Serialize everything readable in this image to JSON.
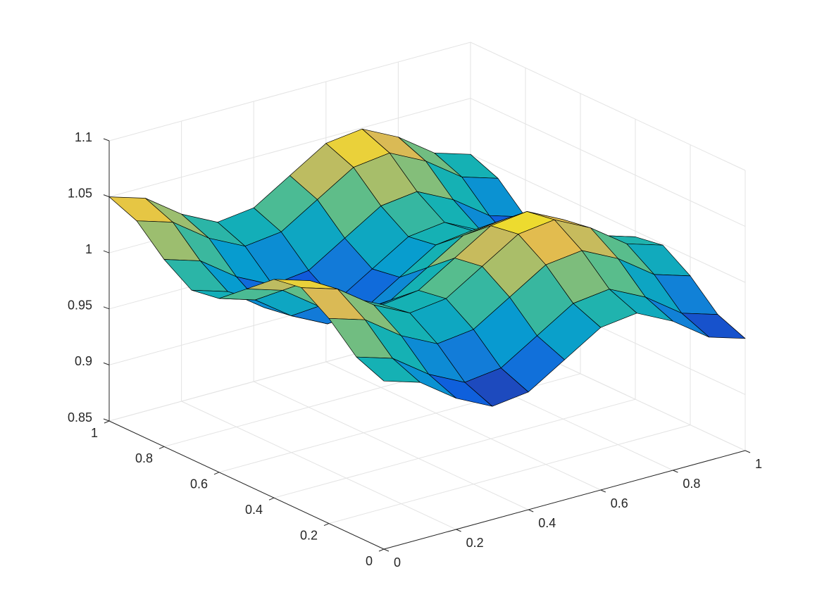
{
  "chart_data": {
    "type": "surface",
    "x": [
      0,
      0.1,
      0.2,
      0.3,
      0.4,
      0.5,
      0.6,
      0.7,
      0.8,
      0.9,
      1
    ],
    "y": [
      0,
      0.1,
      0.2,
      0.3,
      0.4,
      0.5,
      0.6,
      0.7,
      0.8,
      0.9,
      1
    ],
    "z": [
      [
        1.0,
        0.99,
        0.967,
        0.951,
        0.955,
        0.975,
        0.995,
        0.999,
        0.983,
        0.96,
        0.95
      ],
      [
        1.01,
        1.0,
        0.977,
        0.961,
        0.965,
        0.985,
        1.005,
        1.009,
        0.993,
        0.97,
        0.96
      ],
      [
        1.033,
        1.023,
        1.0,
        0.984,
        0.988,
        1.008,
        1.028,
        1.032,
        1.016,
        0.993,
        0.983
      ],
      [
        1.049,
        1.039,
        1.016,
        1.0,
        1.004,
        1.024,
        1.044,
        1.048,
        1.032,
        1.009,
        0.999
      ],
      [
        1.045,
        1.035,
        1.012,
        0.996,
        1.0,
        1.02,
        1.04,
        1.044,
        1.028,
        1.005,
        0.995
      ],
      [
        1.025,
        1.015,
        0.992,
        0.976,
        0.98,
        1.0,
        1.02,
        1.024,
        1.008,
        0.985,
        0.975
      ],
      [
        1.005,
        0.995,
        0.972,
        0.956,
        0.96,
        0.98,
        1.0,
        1.004,
        0.988,
        0.965,
        0.955
      ],
      [
        1.001,
        0.991,
        0.968,
        0.952,
        0.956,
        0.976,
        0.996,
        1.0,
        0.984,
        0.961,
        0.951
      ],
      [
        1.017,
        1.007,
        0.984,
        0.968,
        0.972,
        0.992,
        1.012,
        1.016,
        1.0,
        0.977,
        0.967
      ],
      [
        1.04,
        1.03,
        1.007,
        0.991,
        0.995,
        1.015,
        1.035,
        1.039,
        1.023,
        1.0,
        0.99
      ],
      [
        1.05,
        1.04,
        1.017,
        1.001,
        1.005,
        1.025,
        1.045,
        1.049,
        1.033,
        1.01,
        1.0
      ]
    ],
    "xlim": [
      0,
      1
    ],
    "xticks": [
      0,
      0.2,
      0.4,
      0.6,
      0.8,
      1
    ],
    "ylim": [
      0,
      1
    ],
    "yticks": [
      0,
      0.2,
      0.4,
      0.6,
      0.8,
      1
    ],
    "zlim": [
      0.85,
      1.1
    ],
    "zticks": [
      0.85,
      0.9,
      0.95,
      1,
      1.05,
      1.1
    ],
    "grid": true,
    "colormap": "parula",
    "edgecolor": "#000000"
  }
}
